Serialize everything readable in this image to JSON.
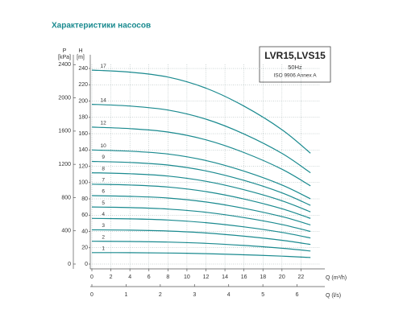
{
  "chart_data": {
    "type": "line",
    "title": "Характеристики насосов",
    "model": "LVR15,LVS15",
    "frequency": "50Hz",
    "standard": "ISO 9906 Annex A",
    "ylabel": "H",
    "yunit": "[m]",
    "y2label": "P",
    "y2unit": "[kPa]",
    "xlabel": "Q (m³/h)",
    "x2label": "Q (l/s)",
    "x": [
      0,
      4,
      8,
      12,
      16,
      20,
      23
    ],
    "xlim": [
      0,
      24
    ],
    "xticks": [
      0,
      2,
      4,
      6,
      8,
      10,
      12,
      14,
      16,
      18,
      20,
      22
    ],
    "x2lim": [
      0,
      6.67
    ],
    "x2ticks": [
      0,
      1,
      2,
      3,
      4,
      5,
      6
    ],
    "ylim": [
      0,
      245
    ],
    "yticks": [
      0,
      20,
      40,
      60,
      80,
      100,
      120,
      140,
      160,
      180,
      200,
      220,
      240
    ],
    "y2lim": [
      0,
      2403
    ],
    "y2ticks": [
      0,
      400,
      800,
      1200,
      1600,
      2000,
      2400
    ],
    "grid": true,
    "series": [
      {
        "name": "1",
        "color": "#1a8a8f",
        "values": [
          14,
          13.9,
          13.5,
          12.7,
          11.4,
          9.7,
          8
        ]
      },
      {
        "name": "2",
        "color": "#1a8a8f",
        "values": [
          28,
          27.7,
          27,
          25.4,
          22.8,
          19.4,
          16
        ]
      },
      {
        "name": "3",
        "color": "#1a8a8f",
        "values": [
          42,
          41.6,
          40.5,
          38.1,
          34.2,
          29.1,
          24
        ]
      },
      {
        "name": "4",
        "color": "#1a8a8f",
        "values": [
          56,
          55.4,
          54,
          50.8,
          45.6,
          38.8,
          32
        ]
      },
      {
        "name": "5",
        "color": "#1a8a8f",
        "values": [
          70,
          69.3,
          67.5,
          63.5,
          57,
          48.5,
          40
        ]
      },
      {
        "name": "6",
        "color": "#1a8a8f",
        "values": [
          84,
          83.1,
          81,
          76.2,
          68.4,
          58.2,
          48
        ]
      },
      {
        "name": "7",
        "color": "#1a8a8f",
        "values": [
          98,
          97,
          94.5,
          88.9,
          79.8,
          67.9,
          56
        ]
      },
      {
        "name": "8",
        "color": "#1a8a8f",
        "values": [
          112,
          110.8,
          108,
          101.6,
          91.2,
          77.6,
          64
        ]
      },
      {
        "name": "9",
        "color": "#1a8a8f",
        "values": [
          126,
          124.7,
          121.5,
          114.3,
          102.6,
          87.3,
          72
        ]
      },
      {
        "name": "10",
        "color": "#1a8a8f",
        "values": [
          140,
          138.5,
          135,
          127,
          114,
          97,
          80
        ]
      },
      {
        "name": "12",
        "color": "#1a8a8f",
        "values": [
          168,
          166.2,
          162,
          152.4,
          136.8,
          116.4,
          96
        ]
      },
      {
        "name": "14",
        "color": "#1a8a8f",
        "values": [
          196,
          193.9,
          189,
          177.8,
          159.6,
          135.8,
          112
        ]
      },
      {
        "name": "17",
        "color": "#1a8a8f",
        "values": [
          238,
          235.5,
          229.5,
          215.9,
          193.8,
          164.9,
          136
        ]
      }
    ]
  }
}
